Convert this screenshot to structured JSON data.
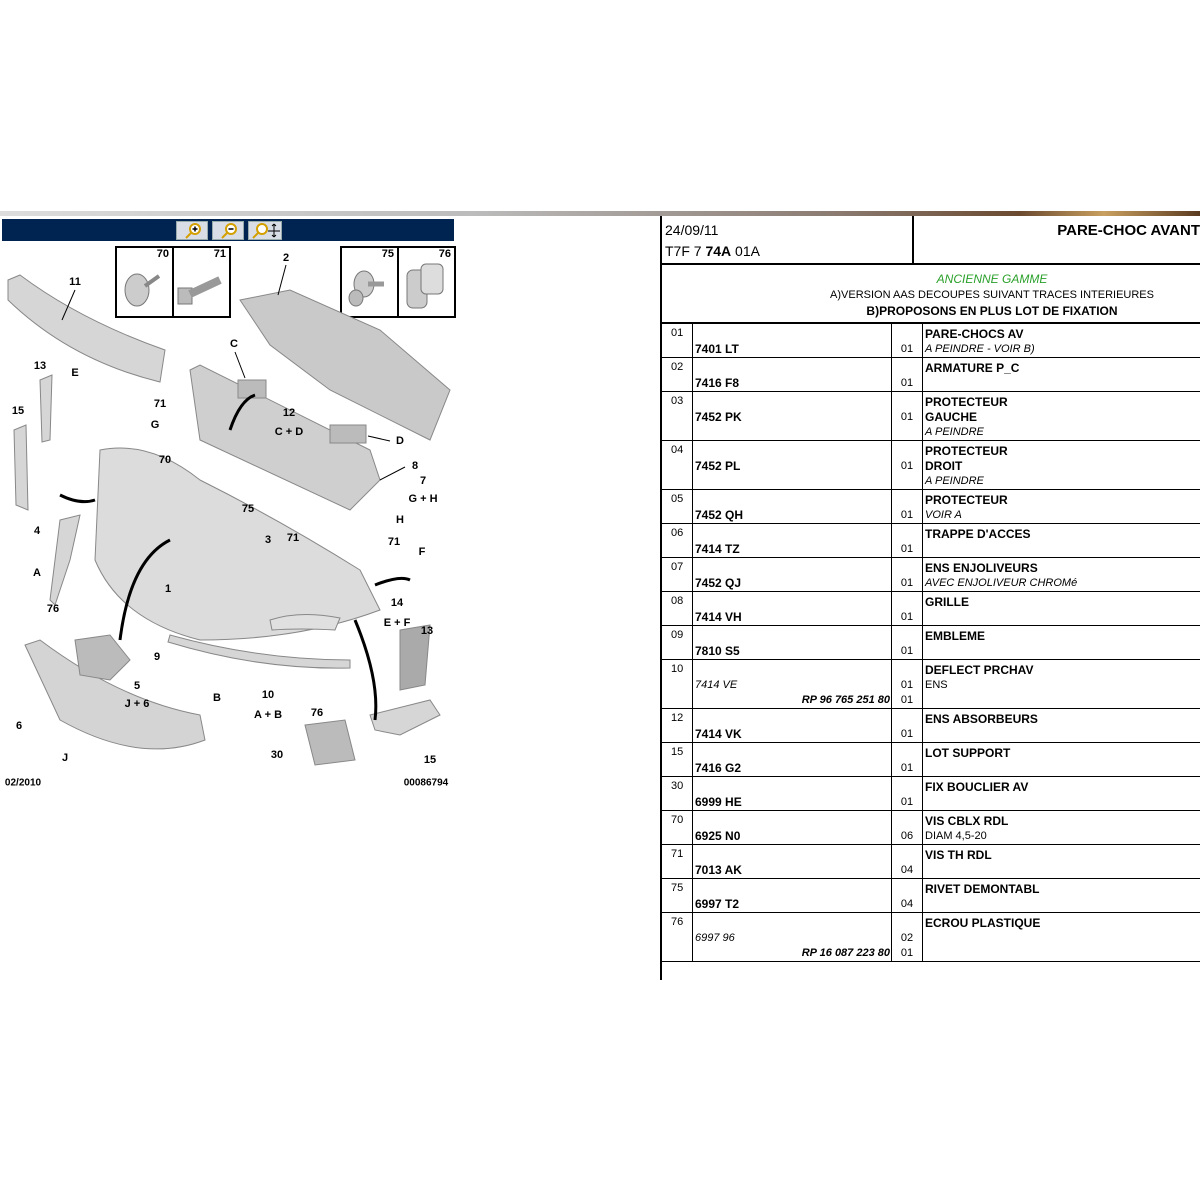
{
  "toolbar": {
    "buttons": [
      {
        "name": "zoom-in-icon"
      },
      {
        "name": "zoom-out-icon"
      },
      {
        "name": "zoom-pan-icon"
      }
    ],
    "background": "#002452"
  },
  "diagram": {
    "insets": [
      "70",
      "71",
      "75",
      "76"
    ],
    "labels": [
      "11",
      "2",
      "13",
      "E",
      "15",
      "C",
      "71",
      "G",
      "12",
      "C + D",
      "70",
      "D",
      "8",
      "7",
      "G + H",
      "H",
      "75",
      "71",
      "4",
      "A",
      "1",
      "3",
      "71",
      "F",
      "14",
      "E + F",
      "76",
      "13",
      "9",
      "5",
      "J + 6",
      "B",
      "10",
      "A + B",
      "76",
      "6",
      "J",
      "30",
      "15"
    ],
    "date_code": "02/2010",
    "drawing_number": "00086794"
  },
  "header": {
    "date": "24/09/11",
    "code_prefix": "T7F 7 ",
    "code_bold": "74A",
    "code_suffix": " 01A",
    "title": "PARE-CHOC AVANT"
  },
  "notes": {
    "range": "ANCIENNE GAMME",
    "note_a": "A)VERSION AAS DECOUPES SUIVANT TRACES INTERIEURES",
    "note_b": "B)PROPOSONS EN PLUS LOT DE FIXATION",
    "range_color": "#2aa02a"
  },
  "parts": [
    {
      "num": "01",
      "lines": [
        {
          "desc": "PARE-CHOCS AV",
          "ds": "b"
        },
        {
          "ref": "7401 LT",
          "rs": "b",
          "qty": "01",
          "desc": "A PEINDRE - VOIR B)",
          "ds": "i"
        }
      ]
    },
    {
      "num": "02",
      "lines": [
        {
          "desc": "ARMATURE P_C",
          "ds": "b"
        },
        {
          "ref": "7416 F8",
          "rs": "b",
          "qty": "01"
        }
      ]
    },
    {
      "num": "03",
      "lines": [
        {
          "desc": "PROTECTEUR",
          "ds": "b"
        },
        {
          "ref": "7452 PK",
          "rs": "b",
          "qty": "01",
          "desc": "GAUCHE",
          "ds": "b"
        },
        {
          "desc": "A PEINDRE",
          "ds": "i"
        }
      ]
    },
    {
      "num": "04",
      "lines": [
        {
          "desc": "PROTECTEUR",
          "ds": "b"
        },
        {
          "ref": "7452 PL",
          "rs": "b",
          "qty": "01",
          "desc": "DROIT",
          "ds": "b"
        },
        {
          "desc": "A PEINDRE",
          "ds": "i"
        }
      ]
    },
    {
      "num": "05",
      "lines": [
        {
          "desc": "PROTECTEUR",
          "ds": "b"
        },
        {
          "ref": "7452 QH",
          "rs": "b",
          "qty": "01",
          "desc": "VOIR A",
          "ds": "i"
        }
      ]
    },
    {
      "num": "06",
      "lines": [
        {
          "desc": "TRAPPE D'ACCES",
          "ds": "b"
        },
        {
          "ref": "7414 TZ",
          "rs": "b",
          "qty": "01"
        }
      ]
    },
    {
      "num": "07",
      "lines": [
        {
          "desc": "ENS ENJOLIVEURS",
          "ds": "b"
        },
        {
          "ref": "7452 QJ",
          "rs": "b",
          "qty": "01",
          "desc": "AVEC ENJOLIVEUR CHROMé",
          "ds": "i"
        }
      ]
    },
    {
      "num": "08",
      "lines": [
        {
          "desc": "GRILLE",
          "ds": "b"
        },
        {
          "ref": "7414 VH",
          "rs": "b",
          "qty": "01"
        }
      ]
    },
    {
      "num": "09",
      "lines": [
        {
          "desc": "EMBLEME",
          "ds": "b"
        },
        {
          "ref": "7810 S5",
          "rs": "b",
          "qty": "01"
        }
      ]
    },
    {
      "num": "10",
      "lines": [
        {
          "desc": "DEFLECT PRCHAV",
          "ds": "b"
        },
        {
          "ref": "7414 VE",
          "rs": "i",
          "qty": "01",
          "desc": "ENS",
          "ds": ""
        },
        {
          "ref": "RP 96 765 251 80",
          "rs": "bi",
          "qty": "01"
        }
      ]
    },
    {
      "num": "12",
      "lines": [
        {
          "desc": "ENS ABSORBEURS",
          "ds": "b"
        },
        {
          "ref": "7414 VK",
          "rs": "b",
          "qty": "01"
        }
      ]
    },
    {
      "num": "15",
      "lines": [
        {
          "desc": "LOT SUPPORT",
          "ds": "b"
        },
        {
          "ref": "7416 G2",
          "rs": "b",
          "qty": "01"
        }
      ]
    },
    {
      "num": "30",
      "lines": [
        {
          "desc": "FIX BOUCLIER AV",
          "ds": "b"
        },
        {
          "ref": "6999 HE",
          "rs": "b",
          "qty": "01"
        }
      ]
    },
    {
      "num": "70",
      "lines": [
        {
          "desc": "VIS CBLX RDL",
          "ds": "b"
        },
        {
          "ref": "6925 N0",
          "rs": "b",
          "qty": "06",
          "desc": "DIAM 4,5-20",
          "ds": ""
        }
      ]
    },
    {
      "num": "71",
      "lines": [
        {
          "desc": "VIS TH RDL",
          "ds": "b"
        },
        {
          "ref": "7013 AK",
          "rs": "b",
          "qty": "04"
        }
      ]
    },
    {
      "num": "75",
      "lines": [
        {
          "desc": "RIVET DEMONTABL",
          "ds": "b"
        },
        {
          "ref": "6997 T2",
          "rs": "b",
          "qty": "04"
        }
      ]
    },
    {
      "num": "76",
      "lines": [
        {
          "desc": "ECROU PLASTIQUE",
          "ds": "b"
        },
        {
          "ref": "6997 96",
          "rs": "i",
          "qty": "02"
        },
        {
          "ref": "RP 16 087 223 80",
          "rs": "bi",
          "qty": "01"
        }
      ]
    }
  ]
}
